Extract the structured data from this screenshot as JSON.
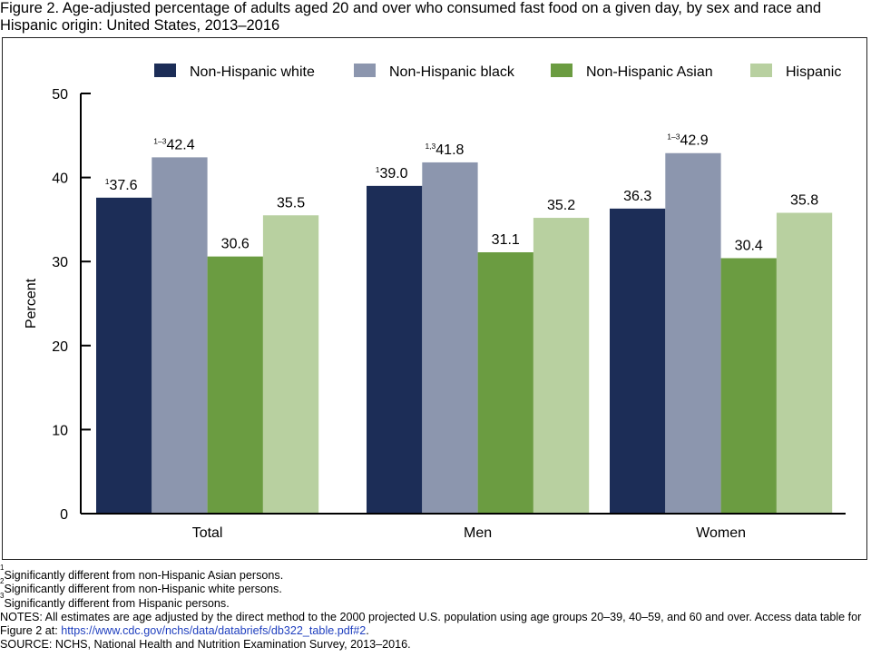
{
  "title": "Figure 2. Age-adjusted percentage of adults aged 20 and over who consumed fast food on a given day, by sex and race and Hispanic origin: United States, 2013–2016",
  "chart_data": {
    "type": "bar",
    "title": "Figure 2. Age-adjusted percentage of adults aged 20 and over who consumed fast food on a given day, by sex and race and Hispanic origin: United States, 2013–2016",
    "xlabel": "",
    "ylabel": "Percent",
    "ylim": [
      0,
      50
    ],
    "yticks": [
      0,
      10,
      20,
      30,
      40,
      50
    ],
    "grid": false,
    "legend_position": "top",
    "categories": [
      "Total",
      "Men",
      "Women"
    ],
    "series": [
      {
        "name": "Non-Hispanic white",
        "color": "#1c2d57",
        "values": [
          37.6,
          39.0,
          36.3
        ],
        "labels": [
          "37.6",
          "39.0",
          "36.3"
        ],
        "notes": [
          "1",
          "1",
          ""
        ]
      },
      {
        "name": "Non-Hispanic black",
        "color": "#8c96ae",
        "values": [
          42.4,
          41.8,
          42.9
        ],
        "labels": [
          "42.4",
          "41.8",
          "42.9"
        ],
        "notes": [
          "1–3",
          "1,3",
          "1–3"
        ]
      },
      {
        "name": "Non-Hispanic Asian",
        "color": "#6b9c41",
        "values": [
          30.6,
          31.1,
          30.4
        ],
        "labels": [
          "30.6",
          "31.1",
          "30.4"
        ],
        "notes": [
          "",
          "",
          ""
        ]
      },
      {
        "name": "Hispanic",
        "color": "#b8d0a0",
        "values": [
          35.5,
          35.2,
          35.8
        ],
        "labels": [
          "35.5",
          "35.2",
          "35.8"
        ],
        "notes": [
          "",
          "",
          ""
        ]
      }
    ]
  },
  "footnotes": [
    {
      "sup": "1",
      "text": "Significantly different from non-Hispanic Asian persons."
    },
    {
      "sup": "2",
      "text": "Significantly different from non-Hispanic white persons."
    },
    {
      "sup": "3",
      "text": "Significantly different from Hispanic persons."
    }
  ],
  "notes": {
    "text1": "NOTES: All estimates are age adjusted by the direct method to the 2000 projected U.S. population using age groups 20–39, 40–59, and 60 and over. Access data table for Figure 2 at: ",
    "link": "https://www.cdc.gov/nchs/data/databriefs/db322_table.pdf#2",
    "text2": "."
  },
  "source": "SOURCE: NCHS, National Health and Nutrition Examination Survey, 2013–2016."
}
